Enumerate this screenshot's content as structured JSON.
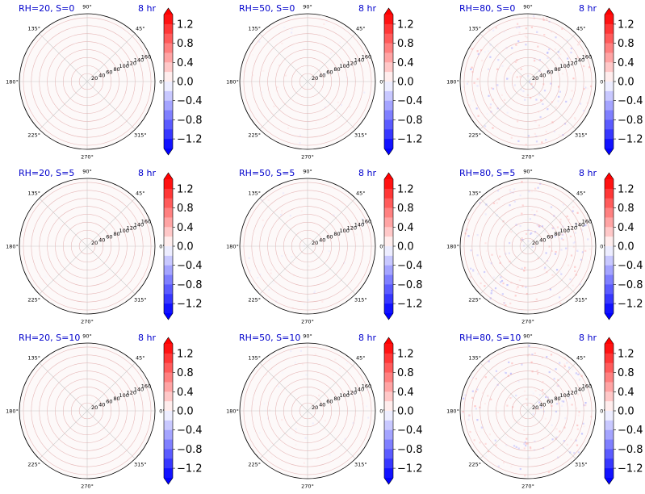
{
  "chart_data": {
    "type": "heatmap",
    "layout": "3x3 polar grid",
    "angle_ticks": [
      "90°",
      "45°",
      "0°",
      "315°",
      "270°",
      "225°",
      "180°",
      "135°"
    ],
    "radial_ticks": [
      20,
      40,
      60,
      80,
      100,
      120,
      140,
      160
    ],
    "radial_max": 170,
    "colorbar": {
      "cmap": "bwr",
      "range": [
        -1.4,
        1.4
      ],
      "extend": "both",
      "ticks": [
        "1.2",
        "0.8",
        "0.4",
        "0.0",
        "−0.4",
        "−0.8",
        "−1.2"
      ],
      "tick_values": [
        1.2,
        0.8,
        0.4,
        0.0,
        -0.4,
        -0.8,
        -1.2
      ]
    },
    "colors": {
      "caption": "#0000cc",
      "positive": "#ff0000",
      "negative": "#0000ff",
      "grid": "#e6b8b8"
    },
    "panels": [
      {
        "title": "RH=20, S=0",
        "time": "8 hr",
        "noise": 0.1
      },
      {
        "title": "RH=50, S=0",
        "time": "8 hr",
        "noise": 0.3
      },
      {
        "title": "RH=80, S=0",
        "time": "8 hr",
        "noise": 0.9
      },
      {
        "title": "RH=20, S=5",
        "time": "8 hr",
        "noise": 0.1
      },
      {
        "title": "RH=50, S=5",
        "time": "8 hr",
        "noise": 0.3
      },
      {
        "title": "RH=80, S=5",
        "time": "8 hr",
        "noise": 0.9
      },
      {
        "title": "RH=20, S=10",
        "time": "8 hr",
        "noise": 0.1
      },
      {
        "title": "RH=50, S=10",
        "time": "8 hr",
        "noise": 0.3
      },
      {
        "title": "RH=80, S=10",
        "time": "8 hr",
        "noise": 0.9
      }
    ]
  }
}
